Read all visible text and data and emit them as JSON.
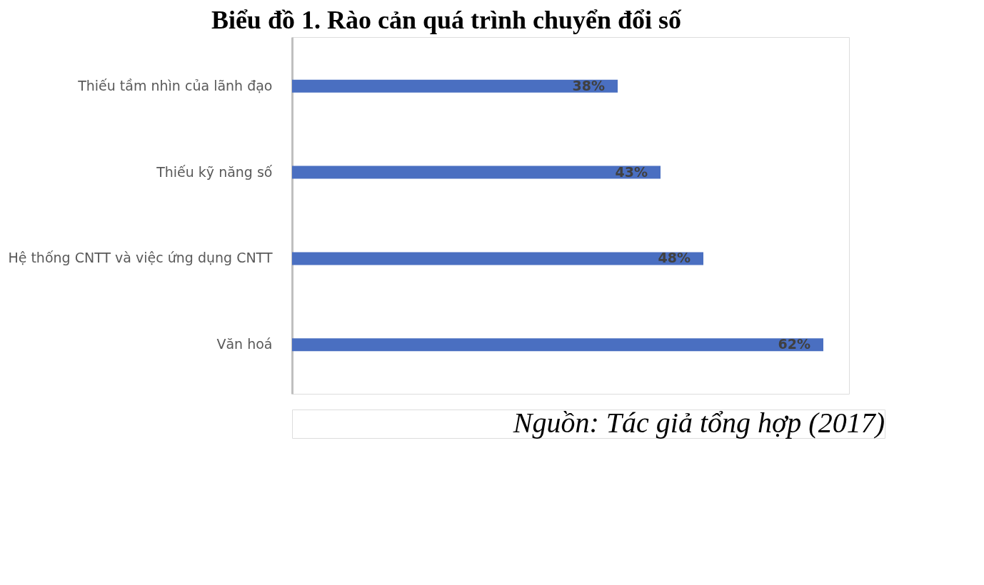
{
  "chart_data": {
    "type": "bar",
    "orientation": "horizontal",
    "title": "Biểu đồ 1. Rào cản quá trình chuyển đổi số",
    "categories": [
      "Thiếu tầm nhìn của lãnh đạo",
      "Thiếu kỹ năng số",
      "Hệ thống CNTT và việc ứng dụng CNTT",
      "Văn hoá"
    ],
    "values": [
      38,
      43,
      48,
      62
    ],
    "color": "#4a6fc1",
    "value_labels": [
      "38%",
      "43%",
      "48%",
      "62%"
    ],
    "grid": false,
    "tick_labels": "y",
    "annotations": [
      "Nguồn: Tác giả tổng hợp (2017)"
    ]
  }
}
